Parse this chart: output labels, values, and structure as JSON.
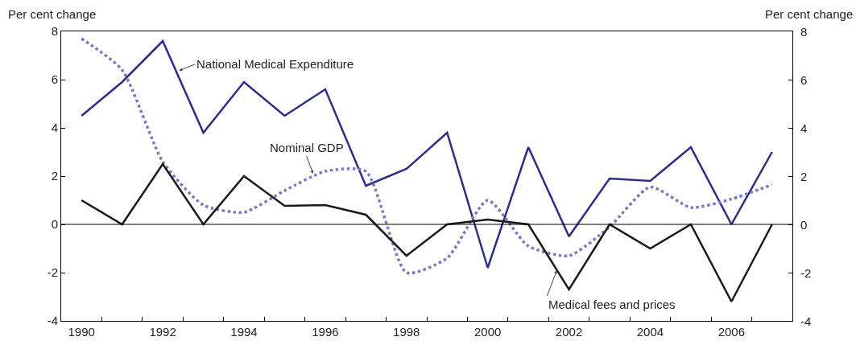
{
  "chart_data": {
    "type": "line",
    "ylabel": "Per cent change",
    "y2label": "Per cent change",
    "x": [
      1990,
      1991,
      1992,
      1993,
      1994,
      1995,
      1996,
      1997,
      1998,
      1999,
      2000,
      2001,
      2002,
      2003,
      2004,
      2005,
      2006,
      2007
    ],
    "series": [
      {
        "color": "#2b2e8f",
        "line_style": "solid",
        "values": [
          4.5,
          5.9,
          7.6,
          3.8,
          5.9,
          4.5,
          5.6,
          1.6,
          2.3,
          3.8,
          -1.8,
          3.2,
          -0.5,
          1.9,
          1.8,
          3.2,
          0,
          3.0
        ]
      },
      {
        "color": "#7b78c8",
        "line_style": "dotted",
        "values": [
          7.7,
          6.4,
          2.6,
          0.8,
          0.5,
          1.4,
          2.2,
          2.2,
          -2.0,
          -1.4,
          1.0,
          -0.9,
          -1.3,
          -0.1,
          1.55,
          0.7,
          1.05,
          1.65
        ]
      },
      {
        "color": "#1a1a1a",
        "line_style": "solid",
        "values": [
          1.0,
          0,
          2.5,
          0,
          2.0,
          0.77,
          0.8,
          0.4,
          -1.3,
          0,
          0.2,
          0,
          -2.7,
          0,
          -1.0,
          0,
          -3.2,
          0
        ]
      }
    ],
    "annotations": [
      {
        "text": "National Medical Expenditure",
        "x": 1992.4,
        "y": 6.37
      },
      {
        "text": "Nominal GDP",
        "x": 1995.7,
        "y": 2.1
      },
      {
        "text": "Medical fees and prices",
        "x": 2001.7,
        "y": -1.9
      }
    ],
    "ref_lines": [
      {
        "axis": "y",
        "value": 0,
        "color": "#000000"
      }
    ],
    "xlim": [
      1989.5,
      2007.5
    ],
    "xticks": [
      1990,
      1992,
      1994,
      1996,
      1998,
      2000,
      2002,
      2004,
      2006,
      {
        "value": 1990.5,
        "label": null
      },
      {
        "value": 1991.5,
        "label": null
      },
      {
        "value": 1992.5,
        "label": null
      },
      {
        "value": 1993.5,
        "label": null
      },
      {
        "value": 1994.5,
        "label": null
      },
      {
        "value": 1995.5,
        "label": null
      },
      {
        "value": 1996.5,
        "label": null
      },
      {
        "value": 1997.5,
        "label": null
      },
      {
        "value": 1998.5,
        "label": null
      },
      {
        "value": 1999.5,
        "label": null
      },
      {
        "value": 2000.5,
        "label": null
      },
      {
        "value": 2001.5,
        "label": null
      },
      {
        "value": 2002.5,
        "label": null
      },
      {
        "value": 2003.5,
        "label": null
      },
      {
        "value": 2004.5,
        "label": null
      },
      {
        "value": 2005.5,
        "label": null
      },
      {
        "value": 2006.5,
        "label": null
      }
    ],
    "ylim": [
      -4,
      8
    ],
    "yticks": [
      -4,
      -2,
      0,
      2,
      4,
      6,
      8
    ],
    "y2lim": [
      -4,
      8
    ],
    "y2ticks": [
      -4,
      -2,
      0,
      2,
      4,
      6,
      8
    ],
    "grid": false,
    "marker": "none"
  }
}
